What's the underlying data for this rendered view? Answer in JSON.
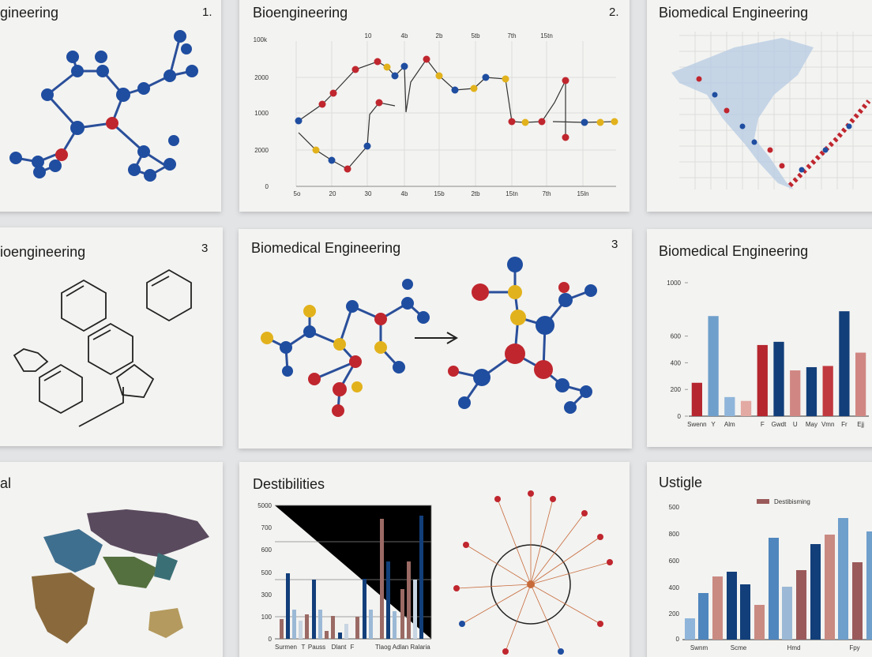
{
  "cards": [
    {
      "title": "gineering",
      "number": "1."
    },
    {
      "title": "Bioengineering",
      "number": "2.",
      "y_labels": [
        "100k",
        "2000",
        "1000",
        "2000",
        "0"
      ],
      "x_labels_top": [
        "10",
        "4b",
        "2b",
        "5tb",
        "7th",
        "15tn"
      ],
      "x_labels_bottom": [
        "5o",
        "20",
        "30",
        "4b",
        "15b",
        "2tb",
        "15tn",
        "7th",
        "15ln"
      ]
    },
    {
      "title": "Biomedical Engineering"
    },
    {
      "title": "ioengineering",
      "number": "3"
    },
    {
      "title": "Biomedical Engineering",
      "number": "3"
    },
    {
      "title": "Biomedical Engineering",
      "chart": {
        "type": "bar",
        "categories": [
          "Swenn",
          "Y",
          "Alm",
          null,
          "F",
          "Gwdt",
          "U",
          "May",
          "Vmn",
          "Fr",
          "Ejj"
        ],
        "values": [
          250,
          750,
          143,
          114,
          533,
          557,
          343,
          367,
          376,
          786,
          476
        ],
        "colors": [
          "#b5262e",
          "#6f9fcb",
          "#8fb5da",
          "#e3a9a3",
          "#b5262e",
          "#123f7a",
          "#d08783",
          "#123f7a",
          "#c0393f",
          "#123f7a",
          "#d08783"
        ],
        "ylim": [
          0,
          1000
        ],
        "yticks": [
          0,
          200,
          400,
          600,
          1000
        ]
      }
    },
    {
      "title": "al"
    },
    {
      "title": "Destibilities",
      "y_labels": [
        "5000",
        "700",
        "600",
        "500",
        "300",
        "100",
        "0"
      ],
      "x_labels": [
        "Surmen",
        "T",
        "Pauss",
        "Dlant",
        "F",
        "Tlaog",
        "Adlan",
        "Ralaria"
      ]
    },
    {
      "title": "Ustigle",
      "legend": "Destibisming",
      "y_labels": [
        "500",
        "800",
        "600",
        "400",
        "200",
        "0"
      ],
      "x_labels": [
        "Swnm",
        "Scme",
        "Hmd",
        "Fpy"
      ]
    }
  ]
}
